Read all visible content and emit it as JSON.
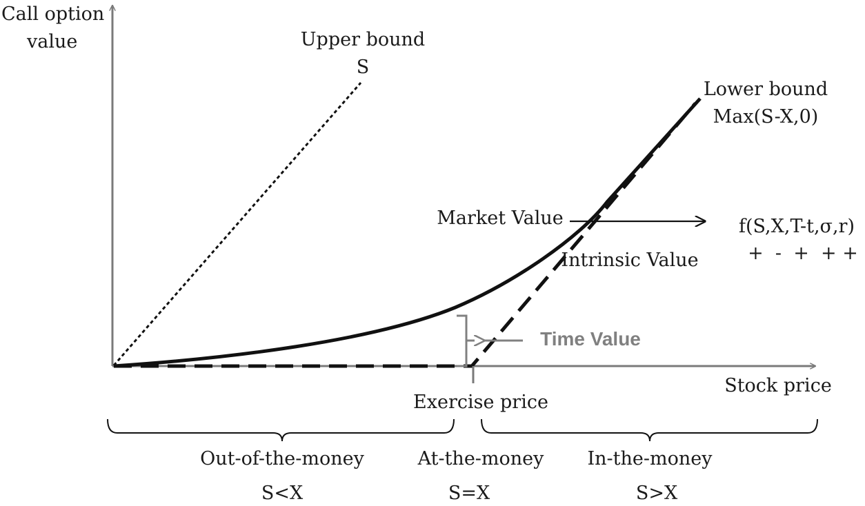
{
  "axes": {
    "y_label_line1": "Call option",
    "y_label_line2": "value",
    "x_label": "Stock price"
  },
  "upper_bound": {
    "title": "Upper bound",
    "formula": "S"
  },
  "lower_bound": {
    "title": "Lower bound",
    "formula": "Max(S-X,0)"
  },
  "market_value": {
    "label": "Market Value",
    "function": "f(S,X,T-t,σ,r)",
    "signs": "+  -  +  + +"
  },
  "intrinsic_value_label": "Intrinsic Value",
  "time_value_label": "Time Value",
  "exercise_price_label": "Exercise price",
  "regions": [
    {
      "label": "Out-of-the-money",
      "condition": "S<X"
    },
    {
      "label": "At-the-money",
      "condition": "S=X"
    },
    {
      "label": "In-the-money",
      "condition": "S>X"
    }
  ],
  "colors": {
    "ink": "#111111",
    "axis": "#7a7a7a",
    "time_value": "#808080"
  }
}
